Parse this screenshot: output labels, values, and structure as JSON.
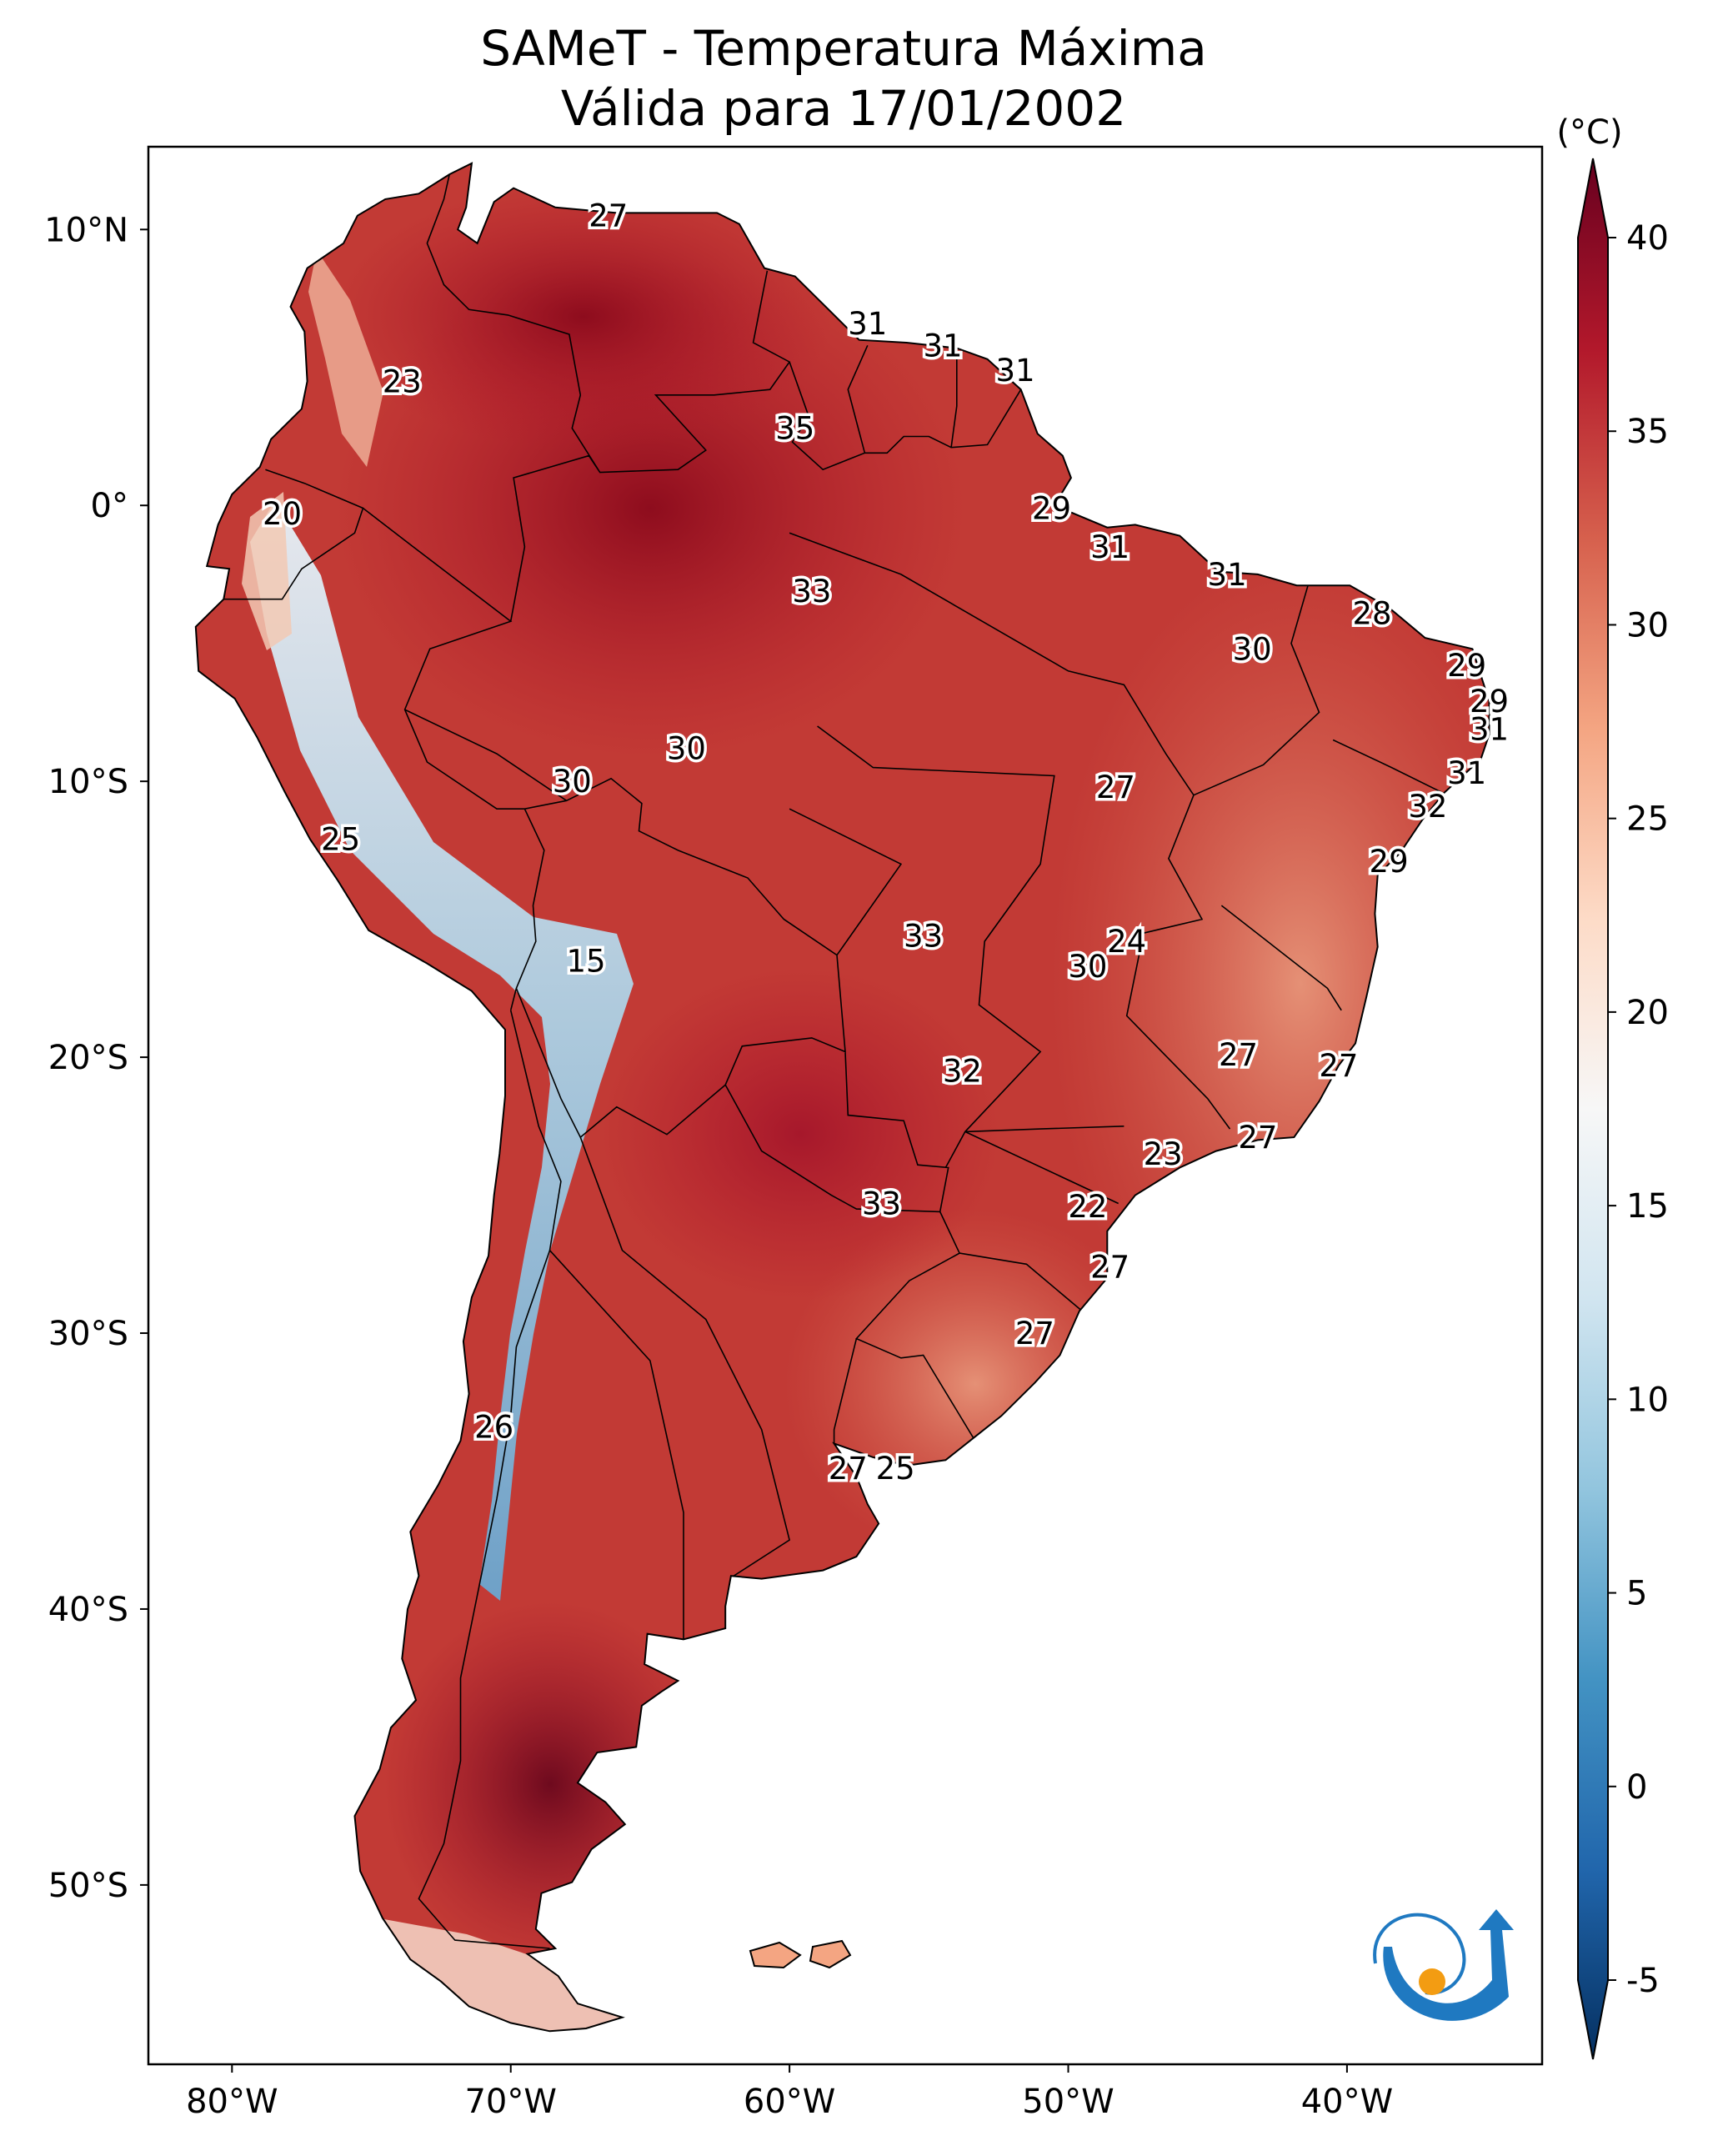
{
  "title": {
    "line1": "SAMeT - Temperatura Máxima",
    "line2": "Válida para 17/01/2002"
  },
  "map": {
    "lat_ticks": [
      {
        "deg": 10,
        "label": "10°N"
      },
      {
        "deg": 0,
        "label": "0°"
      },
      {
        "deg": -10,
        "label": "10°S"
      },
      {
        "deg": -20,
        "label": "20°S"
      },
      {
        "deg": -30,
        "label": "30°S"
      },
      {
        "deg": -40,
        "label": "40°S"
      },
      {
        "deg": -50,
        "label": "50°S"
      }
    ],
    "lon_ticks": [
      {
        "deg": -80,
        "label": "80°W"
      },
      {
        "deg": -70,
        "label": "70°W"
      },
      {
        "deg": -60,
        "label": "60°W"
      },
      {
        "deg": -50,
        "label": "50°W"
      },
      {
        "deg": -40,
        "label": "40°W"
      }
    ],
    "extent": {
      "lon_min": -83,
      "lon_max": -33,
      "lat_min": -56.5,
      "lat_max": 13
    }
  },
  "colorbar": {
    "unit": "(°C)",
    "ticks": [
      "40",
      "35",
      "30",
      "25",
      "20",
      "15",
      "10",
      "5",
      "0",
      "-5"
    ],
    "range": [
      -5,
      40
    ],
    "colors": [
      "#053061",
      "#2166ac",
      "#4393c3",
      "#92c5de",
      "#d1e5f0",
      "#f7f7f7",
      "#fddbc7",
      "#f4a582",
      "#d6604d",
      "#b2182b",
      "#67001f"
    ]
  },
  "points": [
    {
      "value": "27",
      "lon": -66.5,
      "lat": 10.5
    },
    {
      "value": "23",
      "lon": -73.9,
      "lat": 4.5
    },
    {
      "value": "31",
      "lon": -57.2,
      "lat": 6.6
    },
    {
      "value": "31",
      "lon": -54.5,
      "lat": 5.8
    },
    {
      "value": "31",
      "lon": -51.9,
      "lat": 4.9
    },
    {
      "value": "35",
      "lon": -59.8,
      "lat": 2.8
    },
    {
      "value": "20",
      "lon": -78.2,
      "lat": -0.3
    },
    {
      "value": "29",
      "lon": -50.6,
      "lat": -0.1
    },
    {
      "value": "31",
      "lon": -48.5,
      "lat": -1.5
    },
    {
      "value": "31",
      "lon": -44.3,
      "lat": -2.5
    },
    {
      "value": "33",
      "lon": -59.2,
      "lat": -3.1
    },
    {
      "value": "28",
      "lon": -39.1,
      "lat": -3.9
    },
    {
      "value": "30",
      "lon": -43.4,
      "lat": -5.2
    },
    {
      "value": "29",
      "lon": -35.7,
      "lat": -5.8
    },
    {
      "value": "29",
      "lon": -34.9,
      "lat": -7.1
    },
    {
      "value": "31",
      "lon": -34.9,
      "lat": -8.1
    },
    {
      "value": "30",
      "lon": -63.7,
      "lat": -8.8
    },
    {
      "value": "31",
      "lon": -35.7,
      "lat": -9.7
    },
    {
      "value": "30",
      "lon": -67.8,
      "lat": -10.0
    },
    {
      "value": "27",
      "lon": -48.3,
      "lat": -10.2
    },
    {
      "value": "32",
      "lon": -37.1,
      "lat": -10.9
    },
    {
      "value": "25",
      "lon": -76.1,
      "lat": -12.1
    },
    {
      "value": "29",
      "lon": -38.5,
      "lat": -12.9
    },
    {
      "value": "33",
      "lon": -55.2,
      "lat": -15.6
    },
    {
      "value": "24",
      "lon": -47.9,
      "lat": -15.8
    },
    {
      "value": "30",
      "lon": -49.3,
      "lat": -16.7
    },
    {
      "value": "15",
      "lon": -67.3,
      "lat": -16.5
    },
    {
      "value": "27",
      "lon": -43.9,
      "lat": -19.9
    },
    {
      "value": "27",
      "lon": -40.3,
      "lat": -20.3
    },
    {
      "value": "32",
      "lon": -53.8,
      "lat": -20.5
    },
    {
      "value": "27",
      "lon": -43.2,
      "lat": -22.9
    },
    {
      "value": "23",
      "lon": -46.6,
      "lat": -23.5
    },
    {
      "value": "22",
      "lon": -49.3,
      "lat": -25.4
    },
    {
      "value": "33",
      "lon": -56.7,
      "lat": -25.3
    },
    {
      "value": "27",
      "lon": -48.5,
      "lat": -27.6
    },
    {
      "value": "27",
      "lon": -51.2,
      "lat": -30.0
    },
    {
      "value": "26",
      "lon": -70.6,
      "lat": -33.4
    },
    {
      "value": "27",
      "lon": -57.9,
      "lat": -34.9
    },
    {
      "value": "25",
      "lon": -56.2,
      "lat": -34.9
    }
  ]
}
